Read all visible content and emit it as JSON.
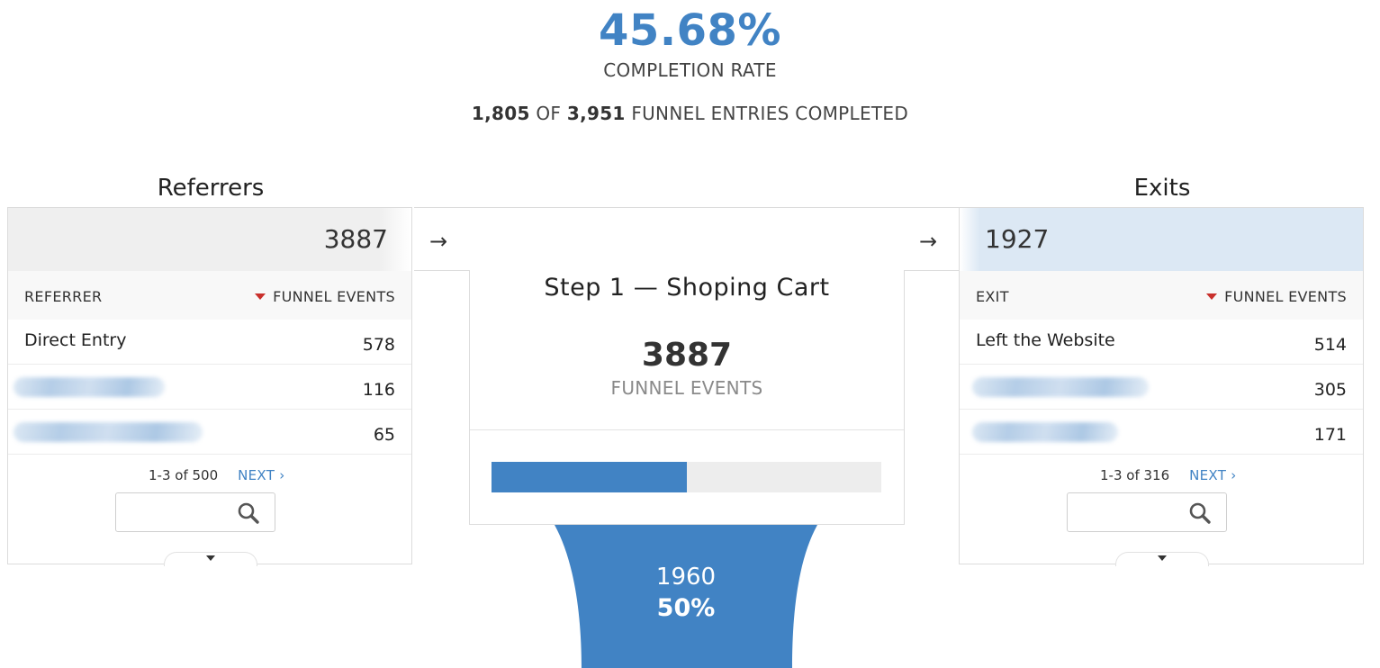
{
  "summary": {
    "completion_rate": "45.68%",
    "completion_rate_label": "COMPLETION RATE",
    "completed": "1,805",
    "of_text": "OF",
    "total_entries": "3,951",
    "entries_text": "FUNNEL ENTRIES COMPLETED"
  },
  "referrers": {
    "title": "Referrers",
    "total": "3887",
    "col_name": "REFERRER",
    "col_value": "FUNNEL EVENTS",
    "rows": [
      {
        "name": "Direct Entry",
        "value": "578",
        "blurred": false
      },
      {
        "name": "",
        "value": "116",
        "blurred": true
      },
      {
        "name": "",
        "value": "65",
        "blurred": true
      }
    ],
    "pager": "1-3 of 500",
    "next_label": "NEXT ›"
  },
  "step": {
    "title": "Step 1 — Shoping Cart",
    "count": "3887",
    "count_label": "FUNNEL EVENTS",
    "progress_fraction": 0.5,
    "flow_count": "1960",
    "flow_percent": "50%"
  },
  "exits": {
    "title": "Exits",
    "total": "1927",
    "col_name": "EXIT",
    "col_value": "FUNNEL EVENTS",
    "rows": [
      {
        "name": "Left the Website",
        "value": "514",
        "blurred": false
      },
      {
        "name": "",
        "value": "305",
        "blurred": true
      },
      {
        "name": "",
        "value": "171",
        "blurred": true
      }
    ],
    "pager": "1-3 of 316",
    "next_label": "NEXT ›"
  },
  "arrows": {
    "left": "→",
    "right": "→"
  },
  "colors": {
    "accent": "#4183c4",
    "sort_indicator": "#c9302c",
    "exit_highlight": "#dce8f4"
  },
  "icons": {
    "search": "search-icon",
    "expand": "caret-down-icon",
    "sort": "sort-desc-icon"
  }
}
